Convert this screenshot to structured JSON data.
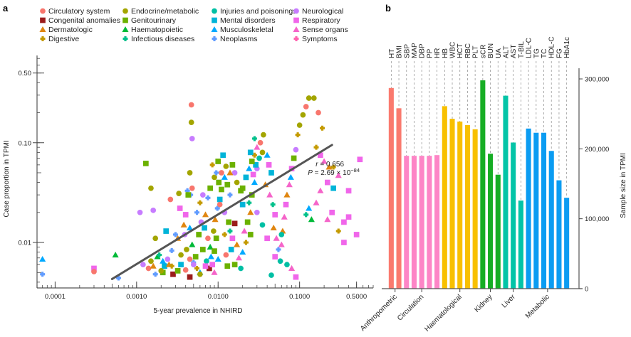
{
  "chart_data": [
    {
      "panel": "a",
      "type": "scatter",
      "title": "",
      "xlabel": "5-year prevalence in NHIRD",
      "ylabel": "Case proportion in TPMI",
      "xscale": "log",
      "yscale": "log",
      "xlim": [
        6e-05,
        0.8
      ],
      "ylim": [
        0.0035,
        0.75
      ],
      "xticks": [
        0.0001,
        0.001,
        0.01,
        0.1,
        0.5
      ],
      "xtick_labels": [
        "0.0001",
        "0.0010",
        "0.0100",
        "0.1000",
        "0.5000"
      ],
      "yticks": [
        0.01,
        0.1,
        0.5
      ],
      "ytick_labels": [
        "0.01",
        "0.10",
        "0.50"
      ],
      "legend_position": "top",
      "categories": [
        {
          "name": "Circulatory system",
          "color": "#f8766d",
          "shape": "circle"
        },
        {
          "name": "Congenital anomalies",
          "color": "#9b1c1c",
          "shape": "square"
        },
        {
          "name": "Dermatologic",
          "color": "#e08610",
          "shape": "triangle"
        },
        {
          "name": "Digestive",
          "color": "#c49a00",
          "shape": "diamond"
        },
        {
          "name": "Endocrine/metabolic",
          "color": "#a3a500",
          "shape": "circle"
        },
        {
          "name": "Genitourinary",
          "color": "#6bb100",
          "shape": "square"
        },
        {
          "name": "Haematopoietic",
          "color": "#00ba38",
          "shape": "triangle"
        },
        {
          "name": "Infectious diseases",
          "color": "#00c08b",
          "shape": "diamond"
        },
        {
          "name": "Injuries and poisonings",
          "color": "#00bfa4",
          "shape": "circle"
        },
        {
          "name": "Mental disorders",
          "color": "#00b4d8",
          "shape": "square"
        },
        {
          "name": "Musculoskeletal",
          "color": "#00a9ff",
          "shape": "triangle"
        },
        {
          "name": "Neoplasms",
          "color": "#619cff",
          "shape": "diamond"
        },
        {
          "name": "Neurological",
          "color": "#c77cff",
          "shape": "circle"
        },
        {
          "name": "Respiratory",
          "color": "#f066ea",
          "shape": "square"
        },
        {
          "name": "Sense organs",
          "color": "#f564c9",
          "shape": "triangle"
        },
        {
          "name": "Symptoms",
          "color": "#ff64b0",
          "shape": "diamond"
        }
      ],
      "regression_line": {
        "x": [
          0.0005,
          0.25
        ],
        "y": [
          0.0043,
          0.095
        ],
        "color": "#555555"
      },
      "annotation": {
        "r_label": "r = 0.656",
        "p_label": "P = 2.69 × 10",
        "p_exponent": "−84"
      },
      "points": [
        [
          7e-05,
          0.0068,
          10
        ],
        [
          7e-05,
          0.0048,
          11
        ],
        [
          0.0003,
          0.0055,
          13
        ],
        [
          0.0003,
          0.0051,
          0
        ],
        [
          0.00055,
          0.0075,
          6
        ],
        [
          0.0006,
          0.0044,
          11
        ],
        [
          0.0012,
          0.006,
          12
        ],
        [
          0.0014,
          0.0055,
          0
        ],
        [
          0.0015,
          0.0065,
          4
        ],
        [
          0.0011,
          0.02,
          12
        ],
        [
          0.0016,
          0.021,
          12
        ],
        [
          0.0017,
          0.011,
          4
        ],
        [
          0.0013,
          0.062,
          5
        ],
        [
          0.0015,
          0.035,
          4
        ],
        [
          0.0026,
          0.027,
          0
        ],
        [
          0.0033,
          0.031,
          4
        ],
        [
          0.0047,
          0.24,
          0
        ],
        [
          0.0047,
          0.16,
          4
        ],
        [
          0.0048,
          0.11,
          12
        ],
        [
          0.0045,
          0.05,
          4
        ],
        [
          0.0048,
          0.035,
          0
        ],
        [
          0.0042,
          0.033,
          11
        ],
        [
          0.0046,
          0.03,
          11
        ],
        [
          0.0043,
          0.03,
          5
        ],
        [
          0.0023,
          0.013,
          9
        ],
        [
          0.0018,
          0.0072,
          6
        ],
        [
          0.0022,
          0.0058,
          9
        ],
        [
          0.0021,
          0.005,
          5
        ],
        [
          0.0019,
          0.0075,
          7
        ],
        [
          0.0024,
          0.0068,
          12
        ],
        [
          0.0025,
          0.006,
          2
        ],
        [
          0.0027,
          0.0083,
          11
        ],
        [
          0.0035,
          0.0075,
          4
        ],
        [
          0.0032,
          0.011,
          2
        ],
        [
          0.003,
          0.012,
          11
        ],
        [
          0.0028,
          0.0048,
          1
        ],
        [
          0.0038,
          0.015,
          2
        ],
        [
          0.004,
          0.019,
          13
        ],
        [
          0.0034,
          0.022,
          13
        ],
        [
          0.0045,
          0.014,
          10
        ],
        [
          0.0039,
          0.012,
          12
        ],
        [
          0.0048,
          0.0095,
          6
        ],
        [
          0.0041,
          0.0085,
          4
        ],
        [
          0.0053,
          0.0072,
          5
        ],
        [
          0.0045,
          0.0068,
          0
        ],
        [
          0.005,
          0.0063,
          11
        ],
        [
          0.0055,
          0.0055,
          3
        ],
        [
          0.006,
          0.005,
          10
        ],
        [
          0.0065,
          0.0085,
          5
        ],
        [
          0.0058,
          0.012,
          5
        ],
        [
          0.0062,
          0.016,
          12
        ],
        [
          0.007,
          0.019,
          2
        ],
        [
          0.0068,
          0.014,
          9
        ],
        [
          0.0075,
          0.011,
          0
        ],
        [
          0.008,
          0.009,
          6
        ],
        [
          0.0072,
          0.0065,
          8
        ],
        [
          0.0078,
          0.0055,
          1
        ],
        [
          0.0085,
          0.006,
          13
        ],
        [
          0.0082,
          0.0072,
          10
        ],
        [
          0.009,
          0.0082,
          5
        ],
        [
          0.0095,
          0.011,
          5
        ],
        [
          0.0088,
          0.013,
          4
        ],
        [
          0.0092,
          0.017,
          2
        ],
        [
          0.0098,
          0.022,
          11
        ],
        [
          0.0105,
          0.027,
          9
        ],
        [
          0.011,
          0.034,
          5
        ],
        [
          0.0102,
          0.04,
          5
        ],
        [
          0.012,
          0.045,
          10
        ],
        [
          0.011,
          0.05,
          0
        ],
        [
          0.0125,
          0.058,
          4
        ],
        [
          0.013,
          0.038,
          5
        ],
        [
          0.014,
          0.03,
          11
        ],
        [
          0.012,
          0.02,
          12
        ],
        [
          0.0135,
          0.016,
          5
        ],
        [
          0.014,
          0.013,
          7
        ],
        [
          0.015,
          0.011,
          13
        ],
        [
          0.016,
          0.0155,
          1
        ],
        [
          0.0145,
          0.0085,
          9
        ],
        [
          0.017,
          0.0095,
          2
        ],
        [
          0.018,
          0.007,
          14
        ],
        [
          0.016,
          0.006,
          5
        ],
        [
          0.019,
          0.0055,
          8
        ],
        [
          0.02,
          0.008,
          10
        ],
        [
          0.022,
          0.01,
          3
        ],
        [
          0.021,
          0.013,
          14
        ],
        [
          0.023,
          0.016,
          5
        ],
        [
          0.025,
          0.02,
          2
        ],
        [
          0.024,
          0.025,
          7
        ],
        [
          0.026,
          0.03,
          5
        ],
        [
          0.028,
          0.04,
          10
        ],
        [
          0.027,
          0.048,
          13
        ],
        [
          0.03,
          0.055,
          12
        ],
        [
          0.032,
          0.07,
          8
        ],
        [
          0.029,
          0.06,
          9
        ],
        [
          0.035,
          0.08,
          4
        ],
        [
          0.033,
          0.1,
          0
        ],
        [
          0.036,
          0.12,
          4
        ],
        [
          0.04,
          0.075,
          10
        ],
        [
          0.042,
          0.06,
          13
        ],
        [
          0.045,
          0.05,
          9
        ],
        [
          0.038,
          0.038,
          2
        ],
        [
          0.043,
          0.03,
          14
        ],
        [
          0.047,
          0.024,
          7
        ],
        [
          0.05,
          0.019,
          13
        ],
        [
          0.048,
          0.014,
          2
        ],
        [
          0.052,
          0.011,
          14
        ],
        [
          0.055,
          0.0085,
          11
        ],
        [
          0.058,
          0.0065,
          8
        ],
        [
          0.06,
          0.0095,
          14
        ],
        [
          0.062,
          0.013,
          2
        ],
        [
          0.065,
          0.018,
          14
        ],
        [
          0.068,
          0.024,
          13
        ],
        [
          0.07,
          0.03,
          2
        ],
        [
          0.075,
          0.038,
          14
        ],
        [
          0.078,
          0.045,
          10
        ],
        [
          0.08,
          0.055,
          13
        ],
        [
          0.085,
          0.07,
          5
        ],
        [
          0.09,
          0.085,
          12
        ],
        [
          0.095,
          0.12,
          3
        ],
        [
          0.1,
          0.15,
          4
        ],
        [
          0.11,
          0.19,
          4
        ],
        [
          0.12,
          0.23,
          0
        ],
        [
          0.13,
          0.28,
          4
        ],
        [
          0.15,
          0.28,
          4
        ],
        [
          0.17,
          0.2,
          0
        ],
        [
          0.19,
          0.14,
          3
        ],
        [
          0.16,
          0.09,
          3
        ],
        [
          0.18,
          0.075,
          13
        ],
        [
          0.2,
          0.065,
          14
        ],
        [
          0.23,
          0.057,
          2
        ],
        [
          0.26,
          0.057,
          3
        ],
        [
          0.3,
          0.047,
          14
        ],
        [
          0.22,
          0.04,
          13
        ],
        [
          0.26,
          0.035,
          9
        ],
        [
          0.18,
          0.033,
          14
        ],
        [
          0.16,
          0.025,
          14
        ],
        [
          0.13,
          0.022,
          10
        ],
        [
          0.12,
          0.019,
          7
        ],
        [
          0.14,
          0.017,
          6
        ],
        [
          0.22,
          0.017,
          14
        ],
        [
          0.35,
          0.016,
          13
        ],
        [
          0.4,
          0.033,
          13
        ],
        [
          0.55,
          0.068,
          13
        ],
        [
          0.3,
          0.013,
          3
        ],
        [
          0.4,
          0.018,
          13
        ],
        [
          0.5,
          0.012,
          13
        ],
        [
          0.35,
          0.01,
          13
        ],
        [
          0.25,
          0.02,
          13
        ],
        [
          0.06,
          0.012,
          8
        ],
        [
          0.05,
          0.0072,
          13
        ],
        [
          0.07,
          0.006,
          8
        ],
        [
          0.08,
          0.0055,
          14
        ],
        [
          0.09,
          0.0045,
          13
        ],
        [
          0.045,
          0.0047,
          8
        ],
        [
          0.04,
          0.011,
          13
        ],
        [
          0.035,
          0.015,
          8
        ],
        [
          0.03,
          0.02,
          12
        ],
        [
          0.025,
          0.012,
          5
        ],
        [
          0.02,
          0.024,
          9
        ],
        [
          0.019,
          0.033,
          5
        ],
        [
          0.017,
          0.04,
          4
        ],
        [
          0.016,
          0.05,
          12
        ],
        [
          0.015,
          0.06,
          5
        ],
        [
          0.014,
          0.05,
          2
        ],
        [
          0.02,
          0.035,
          5
        ],
        [
          0.022,
          0.045,
          9
        ],
        [
          0.024,
          0.055,
          10
        ],
        [
          0.026,
          0.065,
          5
        ],
        [
          0.028,
          0.075,
          3
        ],
        [
          0.03,
          0.09,
          14
        ],
        [
          0.028,
          0.11,
          7
        ],
        [
          0.025,
          0.08,
          9
        ],
        [
          0.008,
          0.035,
          5
        ],
        [
          0.0075,
          0.028,
          11
        ],
        [
          0.009,
          0.045,
          4
        ],
        [
          0.0085,
          0.06,
          3
        ],
        [
          0.006,
          0.025,
          3
        ],
        [
          0.0055,
          0.02,
          11
        ],
        [
          0.0065,
          0.03,
          12
        ],
        [
          0.01,
          0.065,
          5
        ],
        [
          0.0115,
          0.075,
          9
        ],
        [
          0.0095,
          0.05,
          11
        ],
        [
          0.0105,
          0.024,
          0
        ],
        [
          0.012,
          0.012,
          3
        ],
        [
          0.0125,
          0.0075,
          0
        ],
        [
          0.013,
          0.0058,
          5
        ],
        [
          0.01,
          0.0068,
          10
        ],
        [
          0.009,
          0.005,
          14
        ],
        [
          0.007,
          0.0058,
          13
        ],
        [
          0.006,
          0.0048,
          4
        ],
        [
          0.005,
          0.006,
          12
        ],
        [
          0.004,
          0.0053,
          0
        ],
        [
          0.0045,
          0.0045,
          1
        ],
        [
          0.0035,
          0.006,
          9
        ],
        [
          0.0032,
          0.0052,
          5
        ],
        [
          0.0027,
          0.0058,
          3
        ],
        [
          0.0021,
          0.0065,
          10
        ],
        [
          0.002,
          0.0052,
          4
        ],
        [
          0.0017,
          0.0048,
          11
        ],
        [
          0.0016,
          0.0058,
          2
        ]
      ]
    },
    {
      "panel": "b",
      "type": "bar",
      "title": "",
      "xlabel": "",
      "ylabel": "Sample size in TPMI",
      "ylim": [
        0,
        320000
      ],
      "yticks": [
        0,
        100000,
        200000,
        300000
      ],
      "ytick_labels": [
        "0",
        "100,000",
        "200,000",
        "300,000"
      ],
      "grid": "dashed vertical guide per bar",
      "categories": [
        "HT",
        "BMI",
        "SBP",
        "MAP",
        "DBP",
        "PP",
        "HR",
        "HB",
        "WBC",
        "HCT",
        "RBC",
        "PLT",
        "sCR",
        "BUN",
        "UA",
        "ALT",
        "AST",
        "T-BIL",
        "LDL-C",
        "TG",
        "TC",
        "HDL-C",
        "FG",
        "HbA1c"
      ],
      "values": [
        287000,
        258000,
        190000,
        190000,
        190000,
        190000,
        191000,
        261000,
        243000,
        239000,
        234000,
        228000,
        298000,
        193000,
        163000,
        276000,
        209000,
        126000,
        229000,
        223000,
        223000,
        197000,
        155000,
        130000
      ],
      "groups": [
        {
          "name": "Anthropometric",
          "members": [
            "HT",
            "BMI"
          ],
          "color": "#fa7a6e"
        },
        {
          "name": "Circulation",
          "members": [
            "SBP",
            "MAP",
            "DBP",
            "PP",
            "HR"
          ],
          "color": "#fd85c6"
        },
        {
          "name": "Haematological",
          "members": [
            "HB",
            "WBC",
            "HCT",
            "RBC",
            "PLT"
          ],
          "color": "#f8c000"
        },
        {
          "name": "Kidney",
          "members": [
            "sCR",
            "BUN",
            "UA"
          ],
          "color": "#16ad24"
        },
        {
          "name": "Liver",
          "members": [
            "ALT",
            "AST",
            "T-BIL"
          ],
          "color": "#03c4a7"
        },
        {
          "name": "Metabolic",
          "members": [
            "LDL-C",
            "TG",
            "TC",
            "HDL-C",
            "FG",
            "HbA1c"
          ],
          "color": "#0b9cf2"
        }
      ]
    }
  ],
  "panels": {
    "a_label": "a",
    "b_label": "b"
  }
}
